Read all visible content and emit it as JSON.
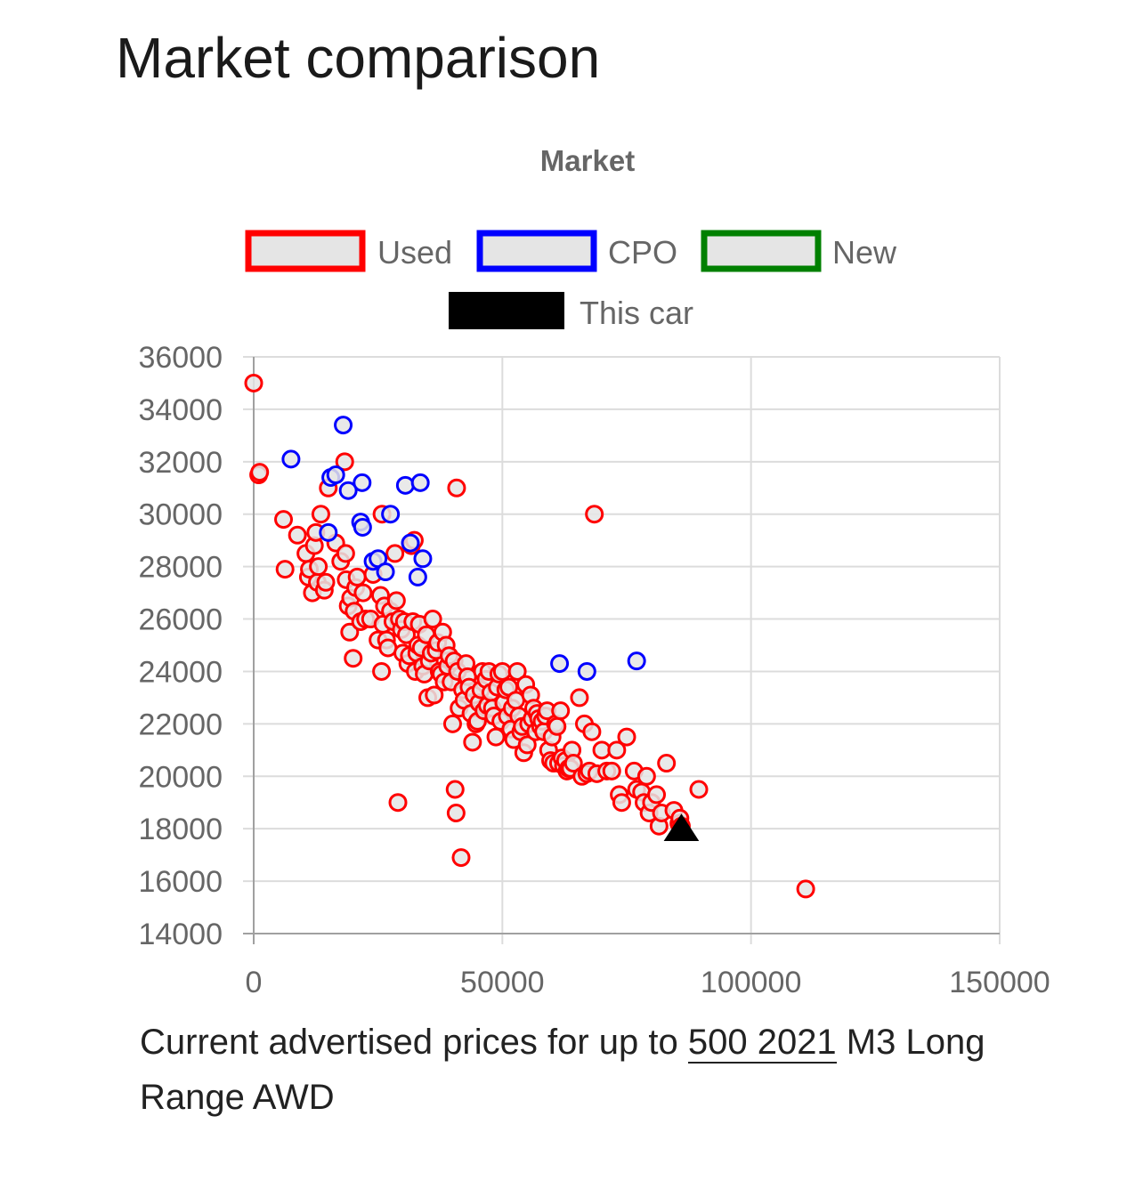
{
  "page": {
    "title": "Market comparison",
    "caption_prefix": "Current advertised prices for up to ",
    "caption_link": "500 2021",
    "caption_suffix": " M3 Long Range AWD"
  },
  "chart_data": {
    "type": "scatter",
    "title": "Market",
    "xlim": [
      0,
      150000
    ],
    "ylim": [
      14000,
      36000
    ],
    "x_ticks": [
      "0",
      "50000",
      "100000",
      "150000"
    ],
    "y_ticks": [
      "36000",
      "34000",
      "32000",
      "30000",
      "28000",
      "26000",
      "24000",
      "22000",
      "20000",
      "18000",
      "16000",
      "14000"
    ],
    "grid": true,
    "legend_position": "top",
    "series": [
      {
        "name": "Used",
        "border_color": "#ff0000",
        "fill_color": "#e5e5e5",
        "marker": "circle",
        "points": [
          [
            0,
            35000
          ],
          [
            1000,
            31500
          ],
          [
            1200,
            31600
          ],
          [
            6000,
            29800
          ],
          [
            6300,
            27900
          ],
          [
            8800,
            29200
          ],
          [
            10500,
            28500
          ],
          [
            11000,
            27600
          ],
          [
            11200,
            27900
          ],
          [
            11800,
            27000
          ],
          [
            12200,
            28800
          ],
          [
            12500,
            29300
          ],
          [
            12800,
            27400
          ],
          [
            13000,
            28000
          ],
          [
            13500,
            30000
          ],
          [
            14200,
            27100
          ],
          [
            14500,
            27400
          ],
          [
            15000,
            31000
          ],
          [
            16500,
            28900
          ],
          [
            17500,
            28200
          ],
          [
            18300,
            32000
          ],
          [
            18500,
            28500
          ],
          [
            18600,
            27500
          ],
          [
            19000,
            26500
          ],
          [
            19300,
            25500
          ],
          [
            19500,
            26800
          ],
          [
            20000,
            24500
          ],
          [
            20200,
            26300
          ],
          [
            20500,
            27200
          ],
          [
            20800,
            27600
          ],
          [
            21500,
            25900
          ],
          [
            22000,
            27000
          ],
          [
            22500,
            26000
          ],
          [
            23500,
            26000
          ],
          [
            24000,
            27700
          ],
          [
            25000,
            25200
          ],
          [
            25500,
            26900
          ],
          [
            25700,
            24000
          ],
          [
            25800,
            30000
          ],
          [
            26000,
            25800
          ],
          [
            26300,
            26500
          ],
          [
            26700,
            25200
          ],
          [
            27000,
            24900
          ],
          [
            27500,
            26300
          ],
          [
            28000,
            25900
          ],
          [
            28400,
            28500
          ],
          [
            28700,
            26700
          ],
          [
            29000,
            19000
          ],
          [
            29300,
            26000
          ],
          [
            29700,
            25600
          ],
          [
            30000,
            24700
          ],
          [
            30300,
            25900
          ],
          [
            30700,
            25400
          ],
          [
            31000,
            24300
          ],
          [
            31300,
            24600
          ],
          [
            31700,
            28800
          ],
          [
            32000,
            25900
          ],
          [
            32300,
            29000
          ],
          [
            32500,
            24000
          ],
          [
            32800,
            24700
          ],
          [
            33000,
            25000
          ],
          [
            33300,
            25800
          ],
          [
            33700,
            24900
          ],
          [
            34000,
            24200
          ],
          [
            34300,
            23900
          ],
          [
            34700,
            25400
          ],
          [
            35000,
            23000
          ],
          [
            35300,
            24400
          ],
          [
            35700,
            24700
          ],
          [
            36000,
            26000
          ],
          [
            36300,
            23100
          ],
          [
            36700,
            24800
          ],
          [
            37000,
            25100
          ],
          [
            37300,
            24000
          ],
          [
            37700,
            23900
          ],
          [
            38000,
            25500
          ],
          [
            38300,
            23600
          ],
          [
            38700,
            25000
          ],
          [
            39000,
            24200
          ],
          [
            39300,
            24600
          ],
          [
            39700,
            23600
          ],
          [
            40000,
            22000
          ],
          [
            40300,
            24400
          ],
          [
            40500,
            19500
          ],
          [
            40700,
            18600
          ],
          [
            40800,
            31000
          ],
          [
            41000,
            24000
          ],
          [
            41300,
            22600
          ],
          [
            41700,
            16900
          ],
          [
            42000,
            23300
          ],
          [
            42300,
            22900
          ],
          [
            42700,
            24300
          ],
          [
            43000,
            23800
          ],
          [
            43300,
            23400
          ],
          [
            43700,
            22400
          ],
          [
            44000,
            21300
          ],
          [
            44300,
            23100
          ],
          [
            44700,
            22000
          ],
          [
            45000,
            22100
          ],
          [
            45300,
            22800
          ],
          [
            45700,
            23300
          ],
          [
            46000,
            24000
          ],
          [
            46300,
            22500
          ],
          [
            46700,
            23700
          ],
          [
            47000,
            22700
          ],
          [
            47300,
            24000
          ],
          [
            47700,
            23200
          ],
          [
            48000,
            22600
          ],
          [
            48300,
            22300
          ],
          [
            48700,
            21500
          ],
          [
            49000,
            23400
          ],
          [
            49300,
            23900
          ],
          [
            49700,
            22100
          ],
          [
            50000,
            24000
          ],
          [
            50300,
            22800
          ],
          [
            50700,
            23300
          ],
          [
            51000,
            22300
          ],
          [
            51300,
            23400
          ],
          [
            51700,
            21800
          ],
          [
            52000,
            22600
          ],
          [
            52300,
            21400
          ],
          [
            52700,
            22900
          ],
          [
            53000,
            24000
          ],
          [
            53300,
            22300
          ],
          [
            53700,
            21700
          ],
          [
            54000,
            21900
          ],
          [
            54300,
            20900
          ],
          [
            54700,
            23500
          ],
          [
            55000,
            21200
          ],
          [
            55300,
            22000
          ],
          [
            55700,
            23100
          ],
          [
            56000,
            22200
          ],
          [
            56300,
            22600
          ],
          [
            56700,
            21700
          ],
          [
            57000,
            22400
          ],
          [
            57300,
            22200
          ],
          [
            57700,
            21900
          ],
          [
            58000,
            22100
          ],
          [
            58300,
            21700
          ],
          [
            58700,
            22300
          ],
          [
            59000,
            22500
          ],
          [
            59300,
            21000
          ],
          [
            59700,
            20600
          ],
          [
            60000,
            21500
          ],
          [
            60300,
            20500
          ],
          [
            60700,
            22000
          ],
          [
            61000,
            21900
          ],
          [
            61300,
            20500
          ],
          [
            61700,
            22500
          ],
          [
            62000,
            20700
          ],
          [
            62300,
            20400
          ],
          [
            62700,
            20600
          ],
          [
            63000,
            20200
          ],
          [
            63300,
            20300
          ],
          [
            63700,
            20300
          ],
          [
            64000,
            21000
          ],
          [
            64300,
            20500
          ],
          [
            65500,
            23000
          ],
          [
            66000,
            20000
          ],
          [
            66500,
            22000
          ],
          [
            67000,
            20100
          ],
          [
            67500,
            20200
          ],
          [
            68000,
            21700
          ],
          [
            68500,
            30000
          ],
          [
            69000,
            20100
          ],
          [
            70000,
            21000
          ],
          [
            71000,
            20200
          ],
          [
            72000,
            20200
          ],
          [
            73000,
            21000
          ],
          [
            73500,
            19300
          ],
          [
            74000,
            19000
          ],
          [
            75000,
            21500
          ],
          [
            76500,
            20200
          ],
          [
            77000,
            19500
          ],
          [
            78000,
            19400
          ],
          [
            78500,
            19000
          ],
          [
            79000,
            20000
          ],
          [
            79500,
            18600
          ],
          [
            80000,
            19000
          ],
          [
            81000,
            19300
          ],
          [
            81500,
            18100
          ],
          [
            82000,
            18600
          ],
          [
            83000,
            20500
          ],
          [
            84500,
            18700
          ],
          [
            85500,
            18200
          ],
          [
            85700,
            18400
          ],
          [
            86000,
            18100
          ],
          [
            89500,
            19500
          ],
          [
            111000,
            15700
          ]
        ]
      },
      {
        "name": "CPO",
        "border_color": "#0000ff",
        "fill_color": "#e5e5e5",
        "marker": "circle",
        "points": [
          [
            7500,
            32100
          ],
          [
            15000,
            29300
          ],
          [
            15500,
            31400
          ],
          [
            16500,
            31500
          ],
          [
            18000,
            33400
          ],
          [
            19000,
            30900
          ],
          [
            21500,
            29700
          ],
          [
            21800,
            31200
          ],
          [
            21900,
            29500
          ],
          [
            24000,
            28200
          ],
          [
            25000,
            28300
          ],
          [
            26500,
            27800
          ],
          [
            27500,
            30000
          ],
          [
            30500,
            31100
          ],
          [
            31500,
            28900
          ],
          [
            33000,
            27600
          ],
          [
            33500,
            31200
          ],
          [
            34000,
            28300
          ],
          [
            61500,
            24300
          ],
          [
            67000,
            24000
          ],
          [
            77000,
            24400
          ]
        ]
      },
      {
        "name": "New",
        "border_color": "#008000",
        "fill_color": "#e5e5e5",
        "marker": "circle",
        "points": []
      },
      {
        "name": "This car",
        "border_color": "#000000",
        "fill_color": "#000000",
        "marker": "triangle",
        "points": [
          [
            86000,
            17900
          ]
        ]
      }
    ]
  }
}
